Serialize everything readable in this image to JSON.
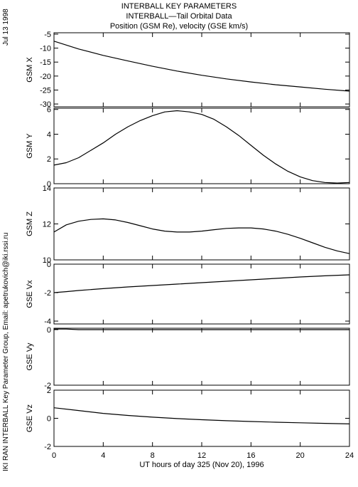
{
  "header": {
    "title_line1": "INTERBALL KEY PARAMETERS",
    "title_line2": "INTERBALL—Tail Orbital Data",
    "title_line3": "Position (GSM Re), velocity (GSE km/s)"
  },
  "side": {
    "date": "Jul 13 1998",
    "credit": "IKI RAN INTERBALL Key Parameter Group, Email: apetrukovich@iki.rssi.ru"
  },
  "chart_data": {
    "type": "line",
    "xlabel": "UT hours of day 325 (Nov 20), 1996",
    "xlim": [
      0,
      24
    ],
    "xticks": [
      0,
      4,
      8,
      12,
      16,
      20,
      24
    ],
    "panels": [
      {
        "ylabel": "GSM X",
        "ylim": [
          -31,
          -4.5
        ],
        "yticks": [
          -30,
          -25,
          -20,
          -15,
          -10,
          -5
        ],
        "x": [
          0,
          2,
          4,
          6,
          8,
          10,
          12,
          14,
          16,
          18,
          20,
          22,
          24
        ],
        "y": [
          -7.5,
          -10.3,
          -12.6,
          -14.6,
          -16.5,
          -18.2,
          -19.7,
          -21.0,
          -22.1,
          -23.1,
          -23.9,
          -24.7,
          -25.4
        ]
      },
      {
        "ylabel": "GSM Y",
        "ylim": [
          0,
          6.1
        ],
        "yticks": [
          0,
          2,
          4,
          6
        ],
        "x": [
          0,
          1,
          2,
          3,
          4,
          5,
          6,
          7,
          8,
          9,
          10,
          11,
          12,
          13,
          14,
          15,
          16,
          17,
          18,
          19,
          20,
          21,
          22,
          23,
          24
        ],
        "y": [
          1.5,
          1.7,
          2.1,
          2.7,
          3.3,
          4.0,
          4.6,
          5.1,
          5.5,
          5.8,
          5.9,
          5.8,
          5.6,
          5.2,
          4.6,
          3.9,
          3.1,
          2.3,
          1.6,
          1.0,
          0.55,
          0.25,
          0.1,
          0.05,
          0.1
        ]
      },
      {
        "ylabel": "GSM Z",
        "ylim": [
          10,
          14
        ],
        "yticks": [
          10,
          12,
          14
        ],
        "x": [
          0,
          1,
          2,
          3,
          4,
          5,
          6,
          7,
          8,
          9,
          10,
          11,
          12,
          13,
          14,
          15,
          16,
          17,
          18,
          19,
          20,
          21,
          22,
          23,
          24
        ],
        "y": [
          11.55,
          11.95,
          12.15,
          12.25,
          12.28,
          12.22,
          12.08,
          11.9,
          11.72,
          11.6,
          11.55,
          11.55,
          11.6,
          11.68,
          11.75,
          11.78,
          11.78,
          11.72,
          11.6,
          11.42,
          11.2,
          10.95,
          10.7,
          10.5,
          10.35
        ]
      },
      {
        "ylabel": "GSE Vx",
        "ylim": [
          -4.2,
          0
        ],
        "yticks": [
          -4,
          -2,
          0
        ],
        "x": [
          0,
          1,
          2,
          4,
          6,
          8,
          10,
          12,
          14,
          16,
          18,
          20,
          22,
          24
        ],
        "y": [
          -2.0,
          -1.93,
          -1.85,
          -1.72,
          -1.6,
          -1.5,
          -1.4,
          -1.3,
          -1.2,
          -1.1,
          -1.0,
          -0.9,
          -0.82,
          -0.75
        ]
      },
      {
        "ylabel": "GSE Vy",
        "ylim": [
          -2,
          0.05
        ],
        "yticks": [
          -2,
          0
        ],
        "x": [
          0,
          1,
          2,
          3,
          4,
          24
        ],
        "y": [
          0.02,
          0.02,
          0.0,
          0.0,
          0.0,
          0.0
        ]
      },
      {
        "ylabel": "GSE Vz",
        "ylim": [
          -2,
          2
        ],
        "yticks": [
          -2,
          0,
          2
        ],
        "x": [
          0,
          2,
          4,
          6,
          8,
          10,
          12,
          14,
          16,
          18,
          20,
          22,
          24
        ],
        "y": [
          0.75,
          0.55,
          0.35,
          0.2,
          0.08,
          -0.02,
          -0.1,
          -0.17,
          -0.23,
          -0.28,
          -0.32,
          -0.36,
          -0.4
        ]
      }
    ]
  }
}
